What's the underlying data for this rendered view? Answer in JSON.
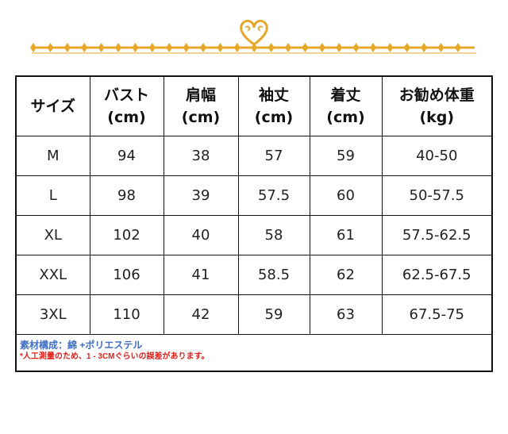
{
  "ornament": {
    "color": "#e6a82a",
    "icon": "heart-divider-icon"
  },
  "table": {
    "headers": [
      {
        "label": "サイズ",
        "unit": ""
      },
      {
        "label": "バスト",
        "unit": "(cm)"
      },
      {
        "label": "肩幅",
        "unit": "(cm)"
      },
      {
        "label": "袖丈",
        "unit": "(cm)"
      },
      {
        "label": "着丈",
        "unit": "(cm)"
      },
      {
        "label": "お勧め体重",
        "unit": "(kg)"
      }
    ],
    "rows": [
      [
        "M",
        "94",
        "38",
        "57",
        "59",
        "40-50"
      ],
      [
        "L",
        "98",
        "39",
        "57.5",
        "60",
        "50-57.5"
      ],
      [
        "XL",
        "102",
        "40",
        "58",
        "61",
        "57.5-62.5"
      ],
      [
        "XXL",
        "106",
        "41",
        "58.5",
        "62",
        "62.5-67.5"
      ],
      [
        "3XL",
        "110",
        "42",
        "59",
        "63",
        "67.5-75"
      ]
    ]
  },
  "notes": {
    "material": "素材構成：綿 +ポリエステル",
    "warning": "*人工測量のため、1 - 3CMぐらいの誤差があります。",
    "material_color": "#3f6fc4",
    "warning_color": "#e0201b"
  }
}
